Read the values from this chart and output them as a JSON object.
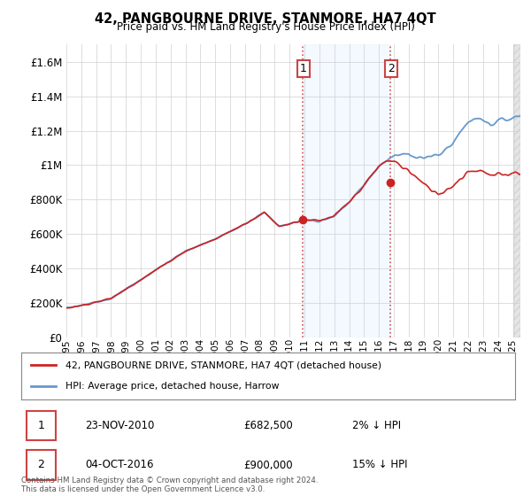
{
  "title": "42, PANGBOURNE DRIVE, STANMORE, HA7 4QT",
  "subtitle": "Price paid vs. HM Land Registry's House Price Index (HPI)",
  "legend_line1": "42, PANGBOURNE DRIVE, STANMORE, HA7 4QT (detached house)",
  "legend_line2": "HPI: Average price, detached house, Harrow",
  "transaction1_date": "23-NOV-2010",
  "transaction1_price": "£682,500",
  "transaction1_note": "2% ↓ HPI",
  "transaction2_date": "04-OCT-2016",
  "transaction2_price": "£900,000",
  "transaction2_note": "15% ↓ HPI",
  "footer": "Contains HM Land Registry data © Crown copyright and database right 2024.\nThis data is licensed under the Open Government Licence v3.0.",
  "hpi_color": "#6699cc",
  "price_color": "#cc2222",
  "marker_color": "#cc2222",
  "background_color": "#ffffff",
  "shaded_region_color": "#ddeeff",
  "dashed_line_color": "#cc4444",
  "ylim": [
    0,
    1700000
  ],
  "yticks": [
    0,
    200000,
    400000,
    600000,
    800000,
    1000000,
    1200000,
    1400000,
    1600000
  ],
  "xlim_start": 1995.0,
  "xlim_end": 2025.5,
  "t1_x": 2010.88,
  "t1_y": 682500,
  "t2_x": 2016.75,
  "t2_y": 900000
}
